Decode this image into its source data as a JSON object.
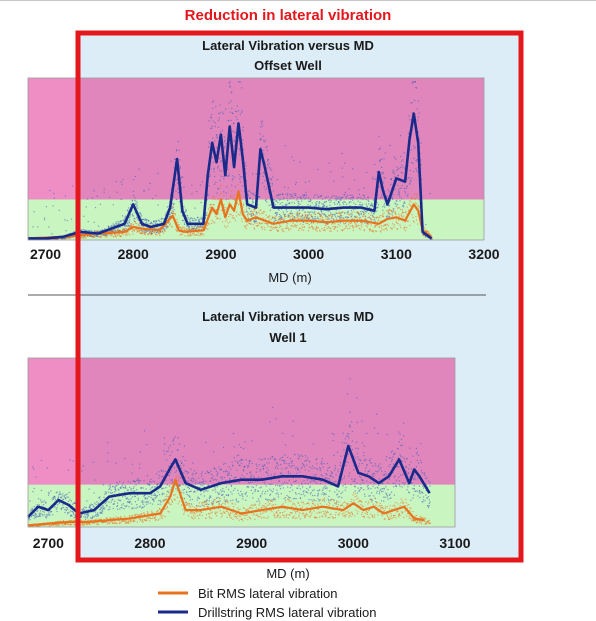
{
  "header": {
    "title": "Reduction in lateral vibration"
  },
  "legend": {
    "items": [
      {
        "label": "Bit RMS lateral vibration",
        "color": "#e8731e"
      },
      {
        "label": "Drillstring RMS lateral vibration",
        "color": "#1a2a8a"
      }
    ]
  },
  "colors": {
    "highlight_box": "#e4181c",
    "highlight_fill": "#dcedf7",
    "zone_high": "#e086bd",
    "zone_high_left": "#ef8fc4",
    "zone_low": "#c8f5c0",
    "bit_series": "#e8731e",
    "drillstring_series": "#1a2a8a",
    "scatter_blue": "#3557b8"
  },
  "chart_data": [
    {
      "type": "line",
      "title": "Lateral Vibration versus MD",
      "subtitle": "Offset Well",
      "xlabel": "MD (m)",
      "ylabel": "",
      "xlim": [
        2680,
        3200
      ],
      "ylim": [
        0,
        1
      ],
      "xticks": [
        2700,
        2800,
        2900,
        3000,
        3100,
        3200
      ],
      "grid": false,
      "legend_position": "bottom",
      "zone_boundary": 0.25,
      "series": [
        {
          "name": "Bit RMS lateral vibration",
          "x": [
            2680,
            2720,
            2760,
            2790,
            2800,
            2810,
            2830,
            2845,
            2852,
            2860,
            2880,
            2890,
            2895,
            2900,
            2905,
            2910,
            2915,
            2920,
            2925,
            2930,
            2940,
            2950,
            2960,
            2980,
            3000,
            3020,
            3040,
            3060,
            3080,
            3090,
            3100,
            3110,
            3120,
            3125,
            3130,
            3140
          ],
          "values": [
            0.01,
            0.02,
            0.04,
            0.05,
            0.08,
            0.07,
            0.06,
            0.15,
            0.06,
            0.05,
            0.06,
            0.2,
            0.16,
            0.25,
            0.14,
            0.22,
            0.18,
            0.3,
            0.16,
            0.12,
            0.14,
            0.12,
            0.1,
            0.12,
            0.12,
            0.11,
            0.12,
            0.12,
            0.1,
            0.13,
            0.14,
            0.12,
            0.22,
            0.18,
            0.06,
            0.02
          ]
        },
        {
          "name": "Drillstring RMS lateral vibration",
          "x": [
            2680,
            2700,
            2720,
            2740,
            2760,
            2780,
            2790,
            2800,
            2810,
            2820,
            2835,
            2842,
            2850,
            2856,
            2862,
            2880,
            2885,
            2890,
            2895,
            2900,
            2905,
            2910,
            2915,
            2920,
            2925,
            2930,
            2940,
            2945,
            2950,
            2960,
            2980,
            3000,
            3020,
            3040,
            3060,
            3075,
            3080,
            3085,
            3090,
            3100,
            3110,
            3115,
            3120,
            3125,
            3130,
            3140
          ],
          "values": [
            0.01,
            0.01,
            0.02,
            0.05,
            0.04,
            0.08,
            0.1,
            0.22,
            0.1,
            0.08,
            0.1,
            0.2,
            0.5,
            0.18,
            0.1,
            0.1,
            0.4,
            0.6,
            0.48,
            0.65,
            0.4,
            0.7,
            0.45,
            0.72,
            0.5,
            0.22,
            0.2,
            0.56,
            0.45,
            0.2,
            0.2,
            0.2,
            0.19,
            0.2,
            0.2,
            0.18,
            0.42,
            0.3,
            0.22,
            0.38,
            0.36,
            0.62,
            0.78,
            0.6,
            0.05,
            0.01
          ]
        }
      ]
    },
    {
      "type": "line",
      "title": "Lateral Vibration versus MD",
      "subtitle": "Well 1",
      "xlabel": "MD (m)",
      "ylabel": "",
      "xlim": [
        2680,
        3100
      ],
      "ylim": [
        0,
        1
      ],
      "xticks": [
        2700,
        2800,
        2900,
        3000,
        3100
      ],
      "grid": false,
      "legend_position": "bottom",
      "zone_boundary": 0.25,
      "series": [
        {
          "name": "Bit RMS lateral vibration",
          "x": [
            2680,
            2700,
            2720,
            2740,
            2760,
            2780,
            2800,
            2810,
            2820,
            2825,
            2835,
            2850,
            2870,
            2890,
            2910,
            2930,
            2950,
            2970,
            2990,
            3000,
            3010,
            3020,
            3030,
            3040,
            3050,
            3060,
            3070
          ],
          "values": [
            0.01,
            0.02,
            0.03,
            0.03,
            0.04,
            0.05,
            0.07,
            0.08,
            0.18,
            0.28,
            0.1,
            0.1,
            0.12,
            0.08,
            0.1,
            0.12,
            0.1,
            0.12,
            0.1,
            0.14,
            0.1,
            0.12,
            0.08,
            0.1,
            0.12,
            0.05,
            0.04
          ]
        },
        {
          "name": "Drillstring RMS lateral vibration",
          "x": [
            2680,
            2690,
            2700,
            2710,
            2720,
            2730,
            2745,
            2760,
            2780,
            2800,
            2810,
            2820,
            2825,
            2835,
            2850,
            2870,
            2890,
            2910,
            2930,
            2950,
            2970,
            2985,
            2990,
            2995,
            3005,
            3015,
            3025,
            3035,
            3045,
            3055,
            3060,
            3065,
            3075
          ],
          "values": [
            0.06,
            0.12,
            0.1,
            0.16,
            0.13,
            0.08,
            0.1,
            0.18,
            0.2,
            0.2,
            0.24,
            0.35,
            0.4,
            0.26,
            0.22,
            0.26,
            0.28,
            0.28,
            0.3,
            0.3,
            0.28,
            0.24,
            0.36,
            0.48,
            0.32,
            0.3,
            0.26,
            0.3,
            0.4,
            0.26,
            0.34,
            0.3,
            0.2
          ]
        }
      ]
    }
  ]
}
